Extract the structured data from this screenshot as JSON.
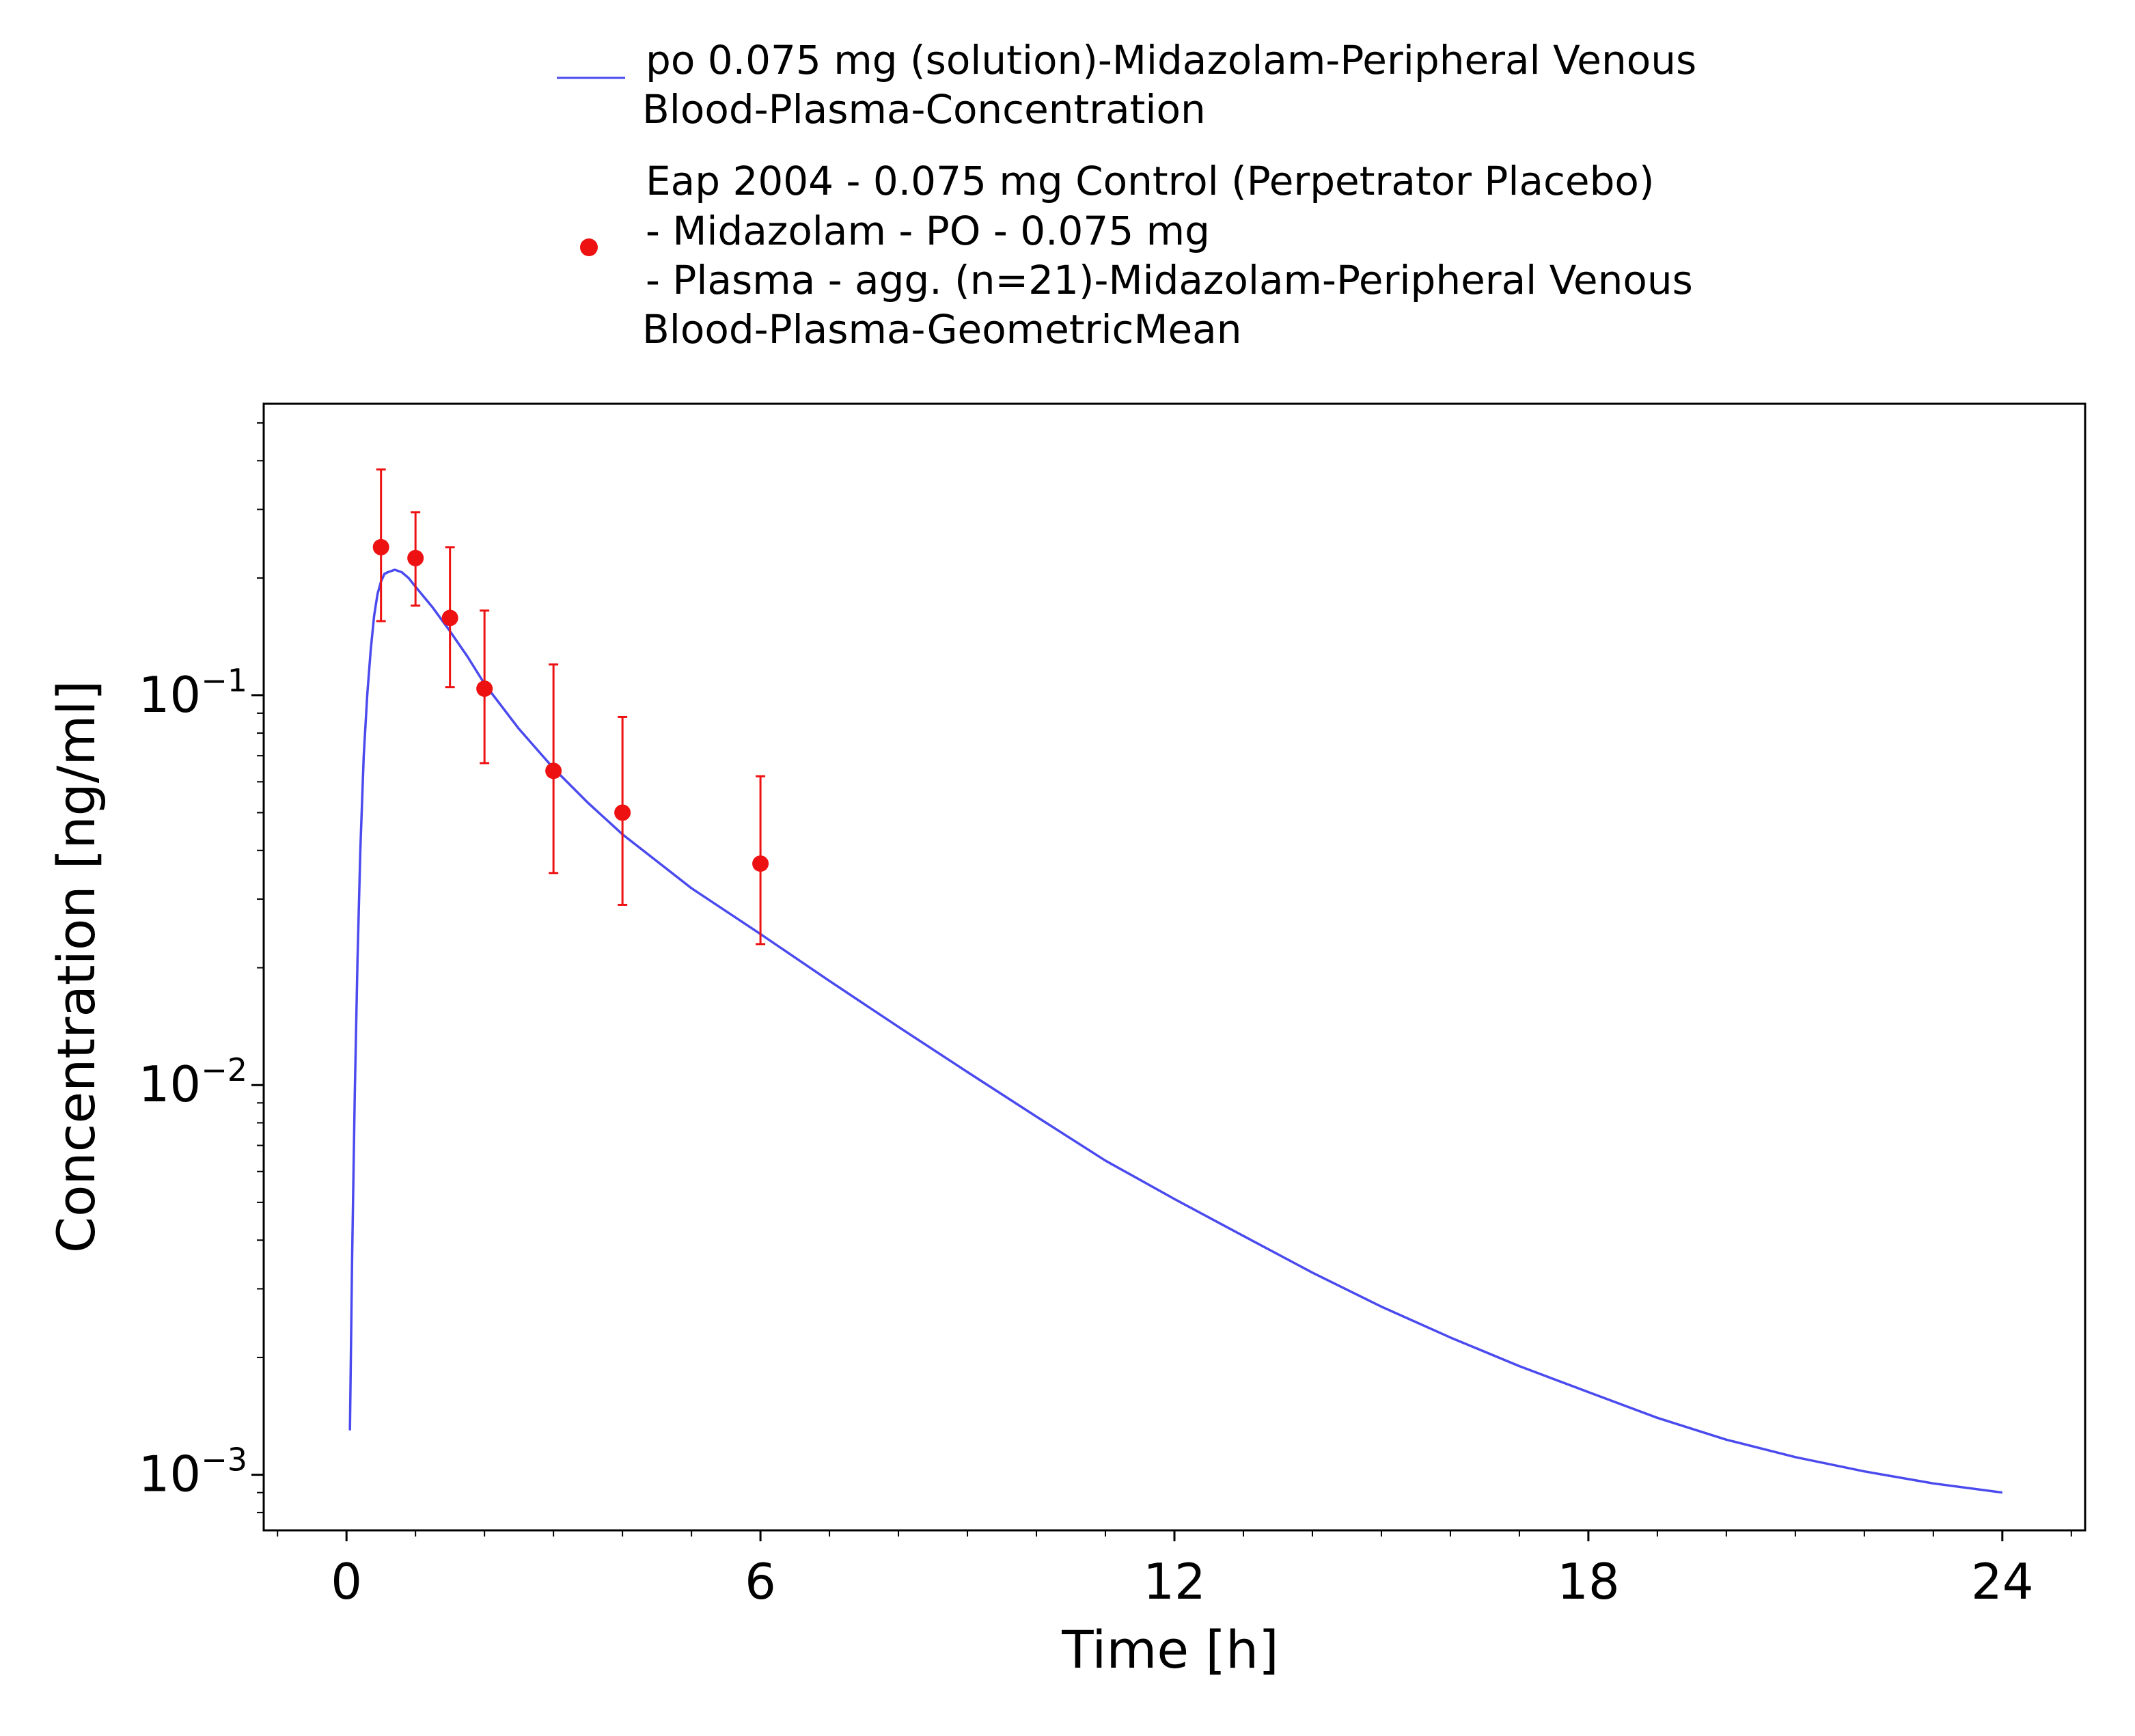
{
  "colors": {
    "simulation_line": "#4a4aef",
    "observed_points": "#ee1111",
    "axis": "#000000",
    "background": "#ffffff"
  },
  "legend": {
    "items": [
      {
        "marker": "line",
        "lines": [
          "po 0.075 mg (solution)-Midazolam-Peripheral Venous",
          "Blood-Plasma-Concentration"
        ]
      },
      {
        "marker": "dot",
        "lines": [
          "Eap 2004 - 0.075 mg Control (Perpetrator Placebo)",
          "- Midazolam - PO - 0.075 mg",
          "- Plasma - agg. (n=21)-Midazolam-Peripheral Venous",
          "Blood-Plasma-GeometricMean"
        ]
      }
    ]
  },
  "chart_data": {
    "type": "line",
    "xlabel": "Time [h]",
    "ylabel": "Concentration [ng/ml]",
    "xlim": [
      -1.2,
      25.2
    ],
    "ylim": [
      0.00072,
      0.56
    ],
    "yscale": "log",
    "grid": false,
    "legend_position": "top",
    "x_ticks": [
      {
        "value": 0,
        "label": "0"
      },
      {
        "value": 6,
        "label": "6"
      },
      {
        "value": 12,
        "label": "12"
      },
      {
        "value": 18,
        "label": "18"
      },
      {
        "value": 24,
        "label": "24"
      }
    ],
    "y_ticks": [
      {
        "value": 0.1,
        "base": "10",
        "exponent": "−1"
      },
      {
        "value": 0.01,
        "base": "10",
        "exponent": "−2"
      },
      {
        "value": 0.001,
        "base": "10",
        "exponent": "−3"
      }
    ],
    "series": [
      {
        "name": "po 0.075 mg (solution)-Midazolam-Peripheral Venous Blood-Plasma-Concentration",
        "kind": "line",
        "x": [
          0.05,
          0.08,
          0.12,
          0.16,
          0.2,
          0.25,
          0.3,
          0.35,
          0.4,
          0.45,
          0.5,
          0.55,
          0.6,
          0.7,
          0.8,
          0.9,
          1.0,
          1.25,
          1.5,
          1.75,
          2.0,
          2.5,
          3.0,
          3.5,
          4.0,
          5.0,
          6.0,
          7.0,
          8.0,
          9.0,
          10.0,
          11.0,
          12.0,
          13.0,
          14.0,
          15.0,
          16.0,
          17.0,
          18.0,
          19.0,
          20.0,
          21.0,
          22.0,
          23.0,
          24.0
        ],
        "y": [
          0.0013,
          0.0035,
          0.0095,
          0.021,
          0.04,
          0.07,
          0.1,
          0.13,
          0.16,
          0.182,
          0.196,
          0.205,
          0.207,
          0.21,
          0.207,
          0.2,
          0.19,
          0.168,
          0.146,
          0.126,
          0.107,
          0.082,
          0.065,
          0.053,
          0.044,
          0.032,
          0.0244,
          0.0185,
          0.0141,
          0.0108,
          0.0083,
          0.0064,
          0.0051,
          0.0041,
          0.0033,
          0.0027,
          0.00225,
          0.0019,
          0.00163,
          0.0014,
          0.00123,
          0.00111,
          0.00102,
          0.00095,
          0.0009
        ]
      },
      {
        "name": "Eap 2004 - 0.075 mg Control (Perpetrator Placebo) - Midazolam - PO - 0.075 mg - Plasma - agg. (n=21)-Midazolam-Peripheral Venous Blood-Plasma-GeometricMean",
        "kind": "scatter",
        "x": [
          0.5,
          1.0,
          1.5,
          2.0,
          3.0,
          4.0,
          6.0
        ],
        "y": [
          0.24,
          0.225,
          0.158,
          0.104,
          0.064,
          0.05,
          0.037
        ],
        "y_lower": [
          0.155,
          0.17,
          0.105,
          0.067,
          0.035,
          0.029,
          0.023
        ],
        "y_upper": [
          0.38,
          0.295,
          0.24,
          0.165,
          0.12,
          0.088,
          0.062
        ]
      }
    ]
  }
}
